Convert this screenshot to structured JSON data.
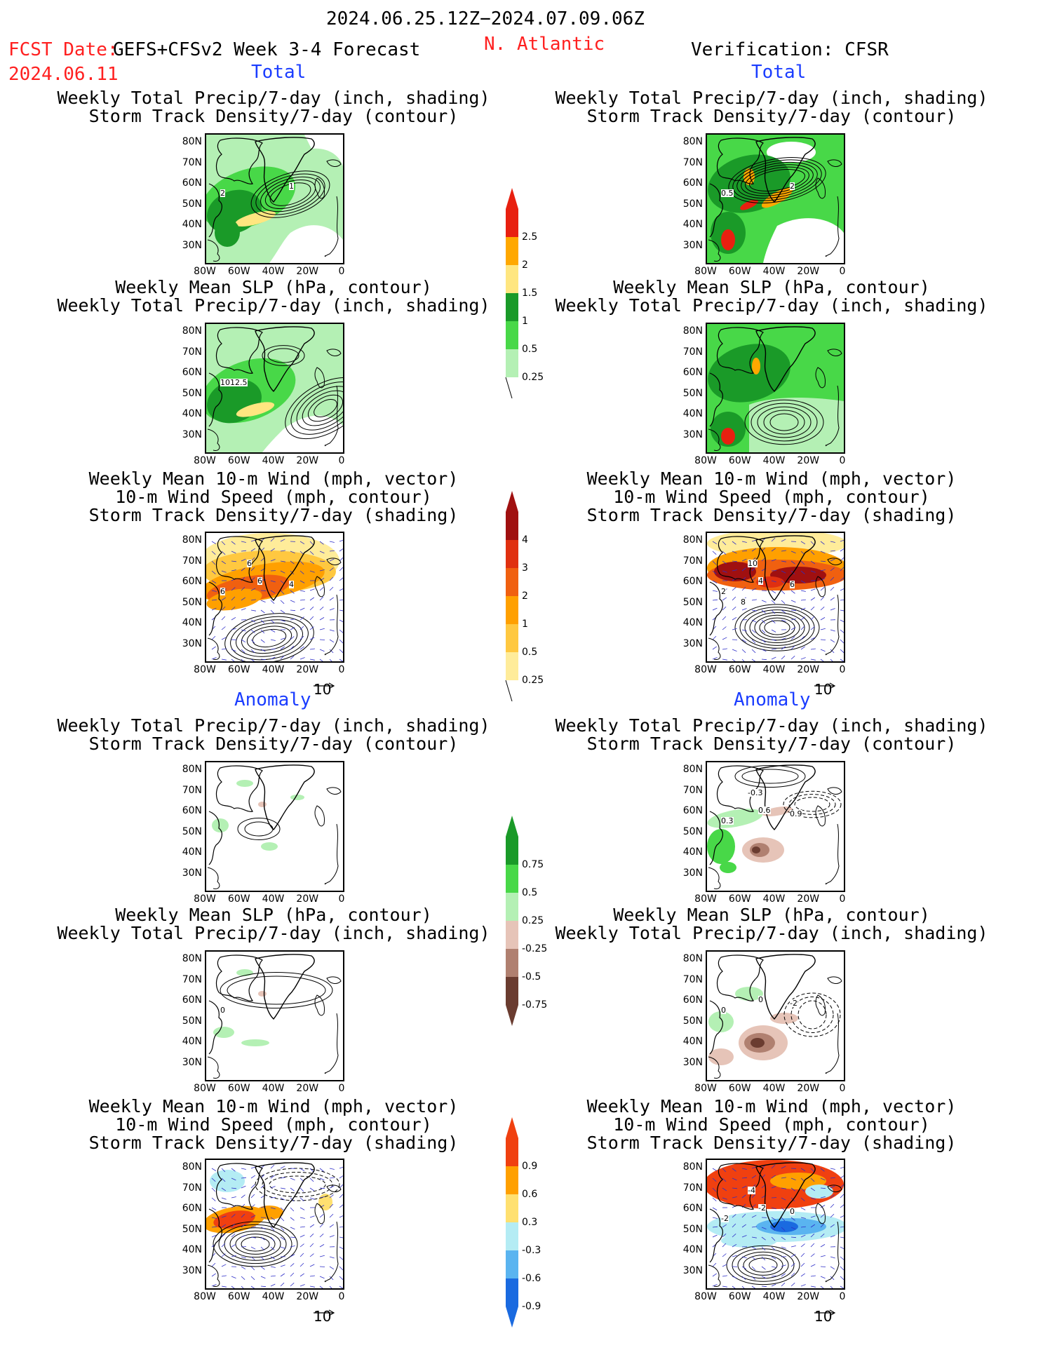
{
  "header": {
    "period": "2024.06.25.12Z−2024.07.09.06Z",
    "fcst_label": "FCST Date:",
    "fcst_model": "GEFS+CFSv2 Week 3-4 Forecast",
    "fcst_date": "2024.06.11",
    "region": "N. Atlantic",
    "verification": "Verification: CFSR"
  },
  "sections": {
    "total": "Total",
    "anomaly": "Anomaly"
  },
  "titles": {
    "precip_track": [
      "Weekly Total Precip/7-day (inch, shading)",
      "Storm Track Density/7-day (contour)"
    ],
    "slp_precip": [
      "Weekly Mean SLP (hPa, contour)",
      "Weekly Total Precip/7-day (inch, shading)"
    ],
    "wind": [
      "Weekly Mean 10-m Wind (mph, vector)",
      "10-m Wind Speed (mph, contour)",
      "Storm Track Density/7-day (shading)"
    ]
  },
  "axes": {
    "lat": [
      "80N",
      "70N",
      "60N",
      "50N",
      "40N",
      "30N"
    ],
    "lon": [
      "80W",
      "60W",
      "40W",
      "20W",
      "0"
    ]
  },
  "vector_ref": "10",
  "map_labels": {
    "fc_t1": [
      "2",
      "1"
    ],
    "fc_t2": [
      "1012.5"
    ],
    "fc_t3": [
      "6",
      "4",
      "6",
      "6"
    ],
    "ob_t1": [
      "0.5",
      "2"
    ],
    "ob_t3": [
      "2",
      "6",
      "4",
      "10",
      "8"
    ],
    "ob_a1": [
      "0.3",
      "0.9",
      "0.6",
      "-0.3"
    ],
    "fc_a2": [
      "0"
    ],
    "ob_a2": [
      "0",
      "-2",
      "0"
    ],
    "ob_a3": [
      "-2",
      "0",
      "-2",
      "-4"
    ]
  },
  "colorbars": {
    "precip": {
      "labels": [
        "2.5",
        "2",
        "1.5",
        "1",
        "0.5",
        "0.25"
      ],
      "colors": [
        "#e82010",
        "#ffa800",
        "#ffe680",
        "#1a9a28",
        "#48d848",
        "#b4f0b4"
      ]
    },
    "storm": {
      "labels": [
        "4",
        "3",
        "2",
        "1",
        "0.5",
        "0.25"
      ],
      "colors": [
        "#a01010",
        "#e03010",
        "#f06010",
        "#ffa000",
        "#ffc840",
        "#ffec9a"
      ]
    },
    "precip_anom": {
      "labels": [
        "0.75",
        "0.5",
        "0.25",
        "-0.25",
        "-0.5",
        "-0.75"
      ],
      "colors": [
        "#1a9a28",
        "#48d848",
        "#b4f0b4",
        "#e6c4b8",
        "#b08070",
        "#6a3c30"
      ]
    },
    "storm_anom": {
      "labels": [
        "0.9",
        "0.6",
        "0.3",
        "-0.3",
        "-0.6",
        "-0.9"
      ],
      "colors": [
        "#f04010",
        "#ffa000",
        "#ffe070",
        "#b4ecf4",
        "#5ab4f0",
        "#1a6ae0"
      ]
    }
  }
}
